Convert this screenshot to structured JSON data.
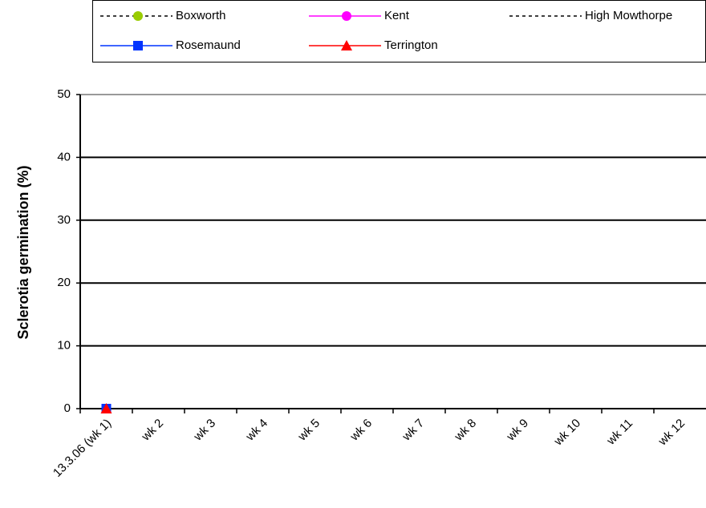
{
  "chart_data": {
    "type": "line",
    "y_label": "Sclerotia germination (%)",
    "categories": [
      "13.3.06 (wk 1)",
      "wk 2",
      "wk 3",
      "wk 4",
      "wk 5",
      "wk 6",
      "wk 7",
      "wk 8",
      "wk 9",
      "wk 10",
      "wk 11",
      "wk 12"
    ],
    "series": [
      {
        "name": "Boxworth",
        "color": "#000000",
        "marker_color": "#99cc00",
        "marker": "circle",
        "dash": true,
        "values": [
          0,
          null,
          null,
          null,
          null,
          null,
          null,
          null,
          null,
          null,
          null,
          null
        ]
      },
      {
        "name": "Kent",
        "color": "#ff00ff",
        "marker_color": "#ff00ff",
        "marker": "circle",
        "dash": false,
        "values": [
          0,
          null,
          null,
          null,
          null,
          null,
          null,
          null,
          null,
          null,
          null,
          null
        ]
      },
      {
        "name": "High Mowthorpe",
        "color": "#000000",
        "marker_color": "#000000",
        "marker": null,
        "dash": true,
        "values": [
          0,
          null,
          null,
          null,
          null,
          null,
          null,
          null,
          null,
          null,
          null,
          null
        ]
      },
      {
        "name": "Rosemaund",
        "color": "#0033ff",
        "marker_color": "#0033ff",
        "marker": "square",
        "dash": false,
        "values": [
          0,
          null,
          null,
          null,
          null,
          null,
          null,
          null,
          null,
          null,
          null,
          null
        ]
      },
      {
        "name": "Terrington",
        "color": "#ff0000",
        "marker_color": "#ff0000",
        "marker": "triangle",
        "dash": false,
        "values": [
          0,
          null,
          null,
          null,
          null,
          null,
          null,
          null,
          null,
          null,
          null,
          null
        ]
      }
    ],
    "ylim": [
      0,
      50
    ],
    "yticks": [
      0,
      10,
      20,
      30,
      40,
      50
    ],
    "grid": true
  }
}
